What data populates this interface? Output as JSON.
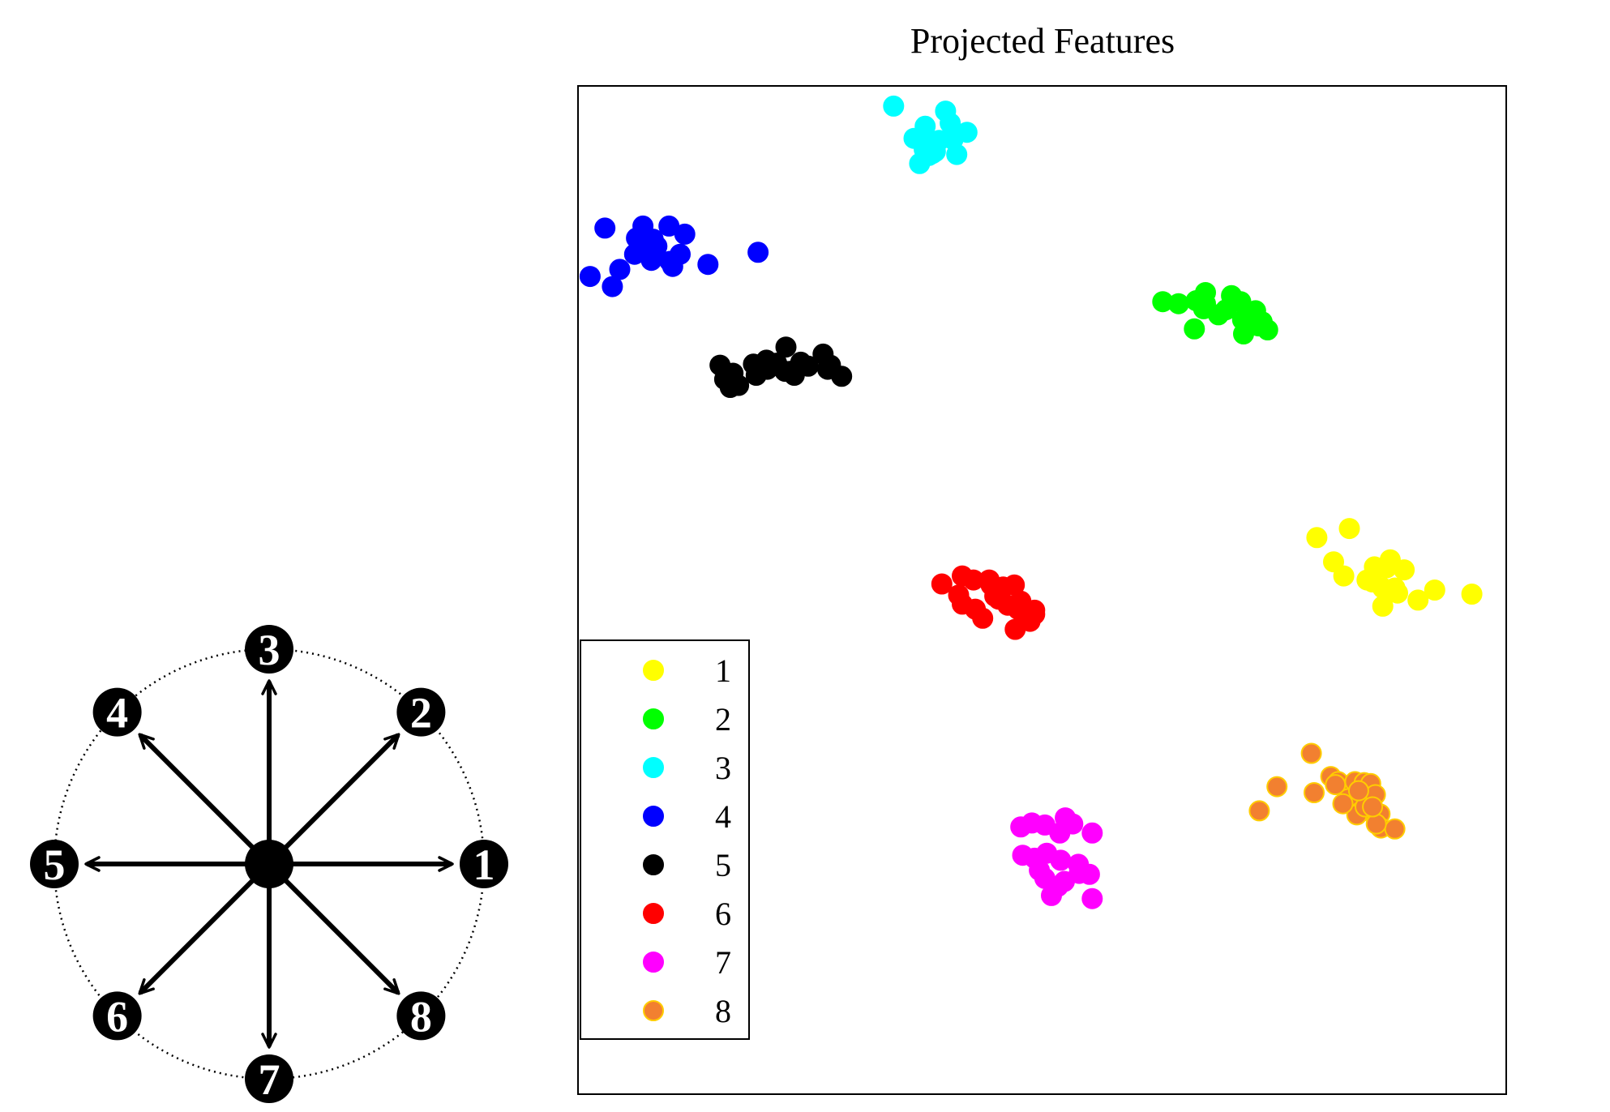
{
  "chart_data": {
    "type": "scatter",
    "title": "Projected Features",
    "xlabel": "",
    "ylabel": "",
    "xlim": [
      0,
      100
    ],
    "ylim": [
      0,
      100
    ],
    "grid": false,
    "legend_position": "bottom-left",
    "series": [
      {
        "name": "1",
        "color": "#ffff00",
        "edge": "#ffff00",
        "points": [
          [
            79.6,
            55.2
          ],
          [
            83.1,
            56.1
          ],
          [
            81.4,
            52.8
          ],
          [
            82.5,
            51.4
          ],
          [
            85.8,
            52.3
          ],
          [
            85.0,
            51.0
          ],
          [
            86.7,
            50.2
          ],
          [
            88.3,
            49.7
          ],
          [
            86.7,
            48.4
          ],
          [
            90.5,
            49.0
          ],
          [
            92.3,
            50.0
          ],
          [
            96.3,
            49.6
          ],
          [
            88.0,
            50.2
          ],
          [
            87.1,
            52.2
          ],
          [
            87.5,
            53.0
          ],
          [
            89.0,
            52.0
          ],
          [
            85.6,
            50.8
          ]
        ]
      },
      {
        "name": "2",
        "color": "#00ff00",
        "edge": "#00ff00",
        "points": [
          [
            67.6,
            78.4
          ],
          [
            66.6,
            78.7
          ],
          [
            67.4,
            77.9
          ],
          [
            69.8,
            77.8
          ],
          [
            71.4,
            78.6
          ],
          [
            73.0,
            77.7
          ],
          [
            69.0,
            77.3
          ],
          [
            72.1,
            76.7
          ],
          [
            71.7,
            75.4
          ],
          [
            73.7,
            76.6
          ],
          [
            73.3,
            76.2
          ],
          [
            70.4,
            79.2
          ],
          [
            71.6,
            76.8
          ],
          [
            74.3,
            75.8
          ],
          [
            67.6,
            79.5
          ],
          [
            63.0,
            78.6
          ],
          [
            66.4,
            75.9
          ],
          [
            64.7,
            78.4
          ]
        ]
      },
      {
        "name": "3",
        "color": "#00ffff",
        "edge": "#00ffff",
        "points": [
          [
            34.0,
            98.0
          ],
          [
            36.2,
            94.8
          ],
          [
            37.4,
            96.0
          ],
          [
            37.8,
            94.2
          ],
          [
            38.2,
            93.3
          ],
          [
            38.9,
            94.6
          ],
          [
            40.1,
            96.3
          ],
          [
            40.8,
            93.2
          ],
          [
            38.5,
            93.5
          ],
          [
            36.8,
            92.3
          ],
          [
            37.3,
            93.7
          ],
          [
            40.4,
            94.7
          ],
          [
            39.6,
            97.5
          ],
          [
            41.9,
            95.4
          ],
          [
            37.8,
            93.1
          ]
        ]
      },
      {
        "name": "4",
        "color": "#0000ff",
        "edge": "#0000ff",
        "points": [
          [
            2.9,
            85.9
          ],
          [
            6.6,
            84.6
          ],
          [
            7.0,
            86.1
          ],
          [
            6.3,
            84.9
          ],
          [
            9.8,
            86.1
          ],
          [
            7.5,
            84.3
          ],
          [
            8.5,
            84.1
          ],
          [
            8.4,
            83.9
          ],
          [
            9.9,
            82.6
          ],
          [
            11.5,
            85.3
          ],
          [
            11.0,
            83.3
          ],
          [
            7.9,
            82.7
          ],
          [
            6.1,
            83.3
          ],
          [
            10.2,
            82.1
          ],
          [
            14.0,
            82.3
          ],
          [
            4.5,
            81.8
          ],
          [
            3.7,
            80.1
          ],
          [
            1.3,
            81.1
          ],
          [
            19.4,
            83.5
          ],
          [
            8.1,
            84.8
          ]
        ]
      },
      {
        "name": "5",
        "color": "#000000",
        "edge": "#000000",
        "points": [
          [
            15.3,
            72.3
          ],
          [
            16.7,
            71.5
          ],
          [
            18.9,
            72.4
          ],
          [
            19.2,
            71.3
          ],
          [
            16.4,
            70.1
          ],
          [
            20.4,
            71.9
          ],
          [
            22.3,
            71.7
          ],
          [
            22.4,
            74.1
          ],
          [
            22.9,
            71.7
          ],
          [
            24.0,
            72.6
          ],
          [
            24.8,
            72.2
          ],
          [
            26.4,
            73.4
          ],
          [
            26.9,
            71.9
          ],
          [
            28.4,
            71.2
          ],
          [
            27.2,
            72.3
          ],
          [
            20.3,
            72.8
          ],
          [
            21.4,
            72.5
          ],
          [
            15.8,
            70.9
          ],
          [
            17.3,
            70.3
          ],
          [
            23.3,
            71.3
          ]
        ]
      },
      {
        "name": "6",
        "color": "#ff0000",
        "edge": "#ff0000",
        "points": [
          [
            41.0,
            49.5
          ],
          [
            39.2,
            50.6
          ],
          [
            41.4,
            51.4
          ],
          [
            42.6,
            51.0
          ],
          [
            44.5,
            50.5
          ],
          [
            45.3,
            49.1
          ],
          [
            46.3,
            48.5
          ],
          [
            47.0,
            50.5
          ],
          [
            47.7,
            48.9
          ],
          [
            48.1,
            47.3
          ],
          [
            48.7,
            46.9
          ],
          [
            49.2,
            47.6
          ],
          [
            49.2,
            48.0
          ],
          [
            47.1,
            46.1
          ],
          [
            47.4,
            48.1
          ],
          [
            44.9,
            49.4
          ],
          [
            44.3,
            51.0
          ],
          [
            45.8,
            50.3
          ],
          [
            43.6,
            47.2
          ],
          [
            41.4,
            48.6
          ],
          [
            42.8,
            48.1
          ]
        ]
      },
      {
        "name": "7",
        "color": "#ff00ff",
        "edge": "#ff00ff",
        "points": [
          [
            47.7,
            26.5
          ],
          [
            48.9,
            26.9
          ],
          [
            50.3,
            26.7
          ],
          [
            52.5,
            27.4
          ],
          [
            53.3,
            26.8
          ],
          [
            51.9,
            25.9
          ],
          [
            55.4,
            25.9
          ],
          [
            47.9,
            23.7
          ],
          [
            49.2,
            23.4
          ],
          [
            50.5,
            23.9
          ],
          [
            52.0,
            23.2
          ],
          [
            53.9,
            22.8
          ],
          [
            55.1,
            21.8
          ],
          [
            50.3,
            21.4
          ],
          [
            49.7,
            22.2
          ],
          [
            52.4,
            21.1
          ],
          [
            51.7,
            20.6
          ],
          [
            51.0,
            19.7
          ],
          [
            55.4,
            19.4
          ],
          [
            54.0,
            21.9
          ]
        ]
      },
      {
        "name": "8",
        "color": "#f28030",
        "edge": "#ffcc00",
        "points": [
          [
            79.0,
            33.8
          ],
          [
            81.1,
            31.5
          ],
          [
            81.9,
            31.0
          ],
          [
            83.6,
            30.1
          ],
          [
            83.7,
            31.0
          ],
          [
            84.6,
            29.6
          ],
          [
            84.7,
            30.9
          ],
          [
            85.4,
            30.8
          ],
          [
            83.0,
            29.3
          ],
          [
            84.3,
            28.0
          ],
          [
            83.9,
            27.7
          ],
          [
            84.8,
            28.5
          ],
          [
            85.9,
            29.7
          ],
          [
            86.4,
            27.8
          ],
          [
            86.5,
            26.4
          ],
          [
            88.0,
            26.3
          ],
          [
            73.4,
            28.1
          ],
          [
            75.3,
            30.5
          ],
          [
            79.3,
            29.9
          ],
          [
            82.4,
            28.8
          ],
          [
            86.0,
            26.8
          ],
          [
            81.6,
            30.7
          ],
          [
            84.1,
            30.1
          ],
          [
            85.6,
            28.5
          ]
        ]
      }
    ]
  },
  "direction_diagram": {
    "nodes": [
      "1",
      "2",
      "3",
      "4",
      "5",
      "6",
      "7",
      "8"
    ]
  }
}
